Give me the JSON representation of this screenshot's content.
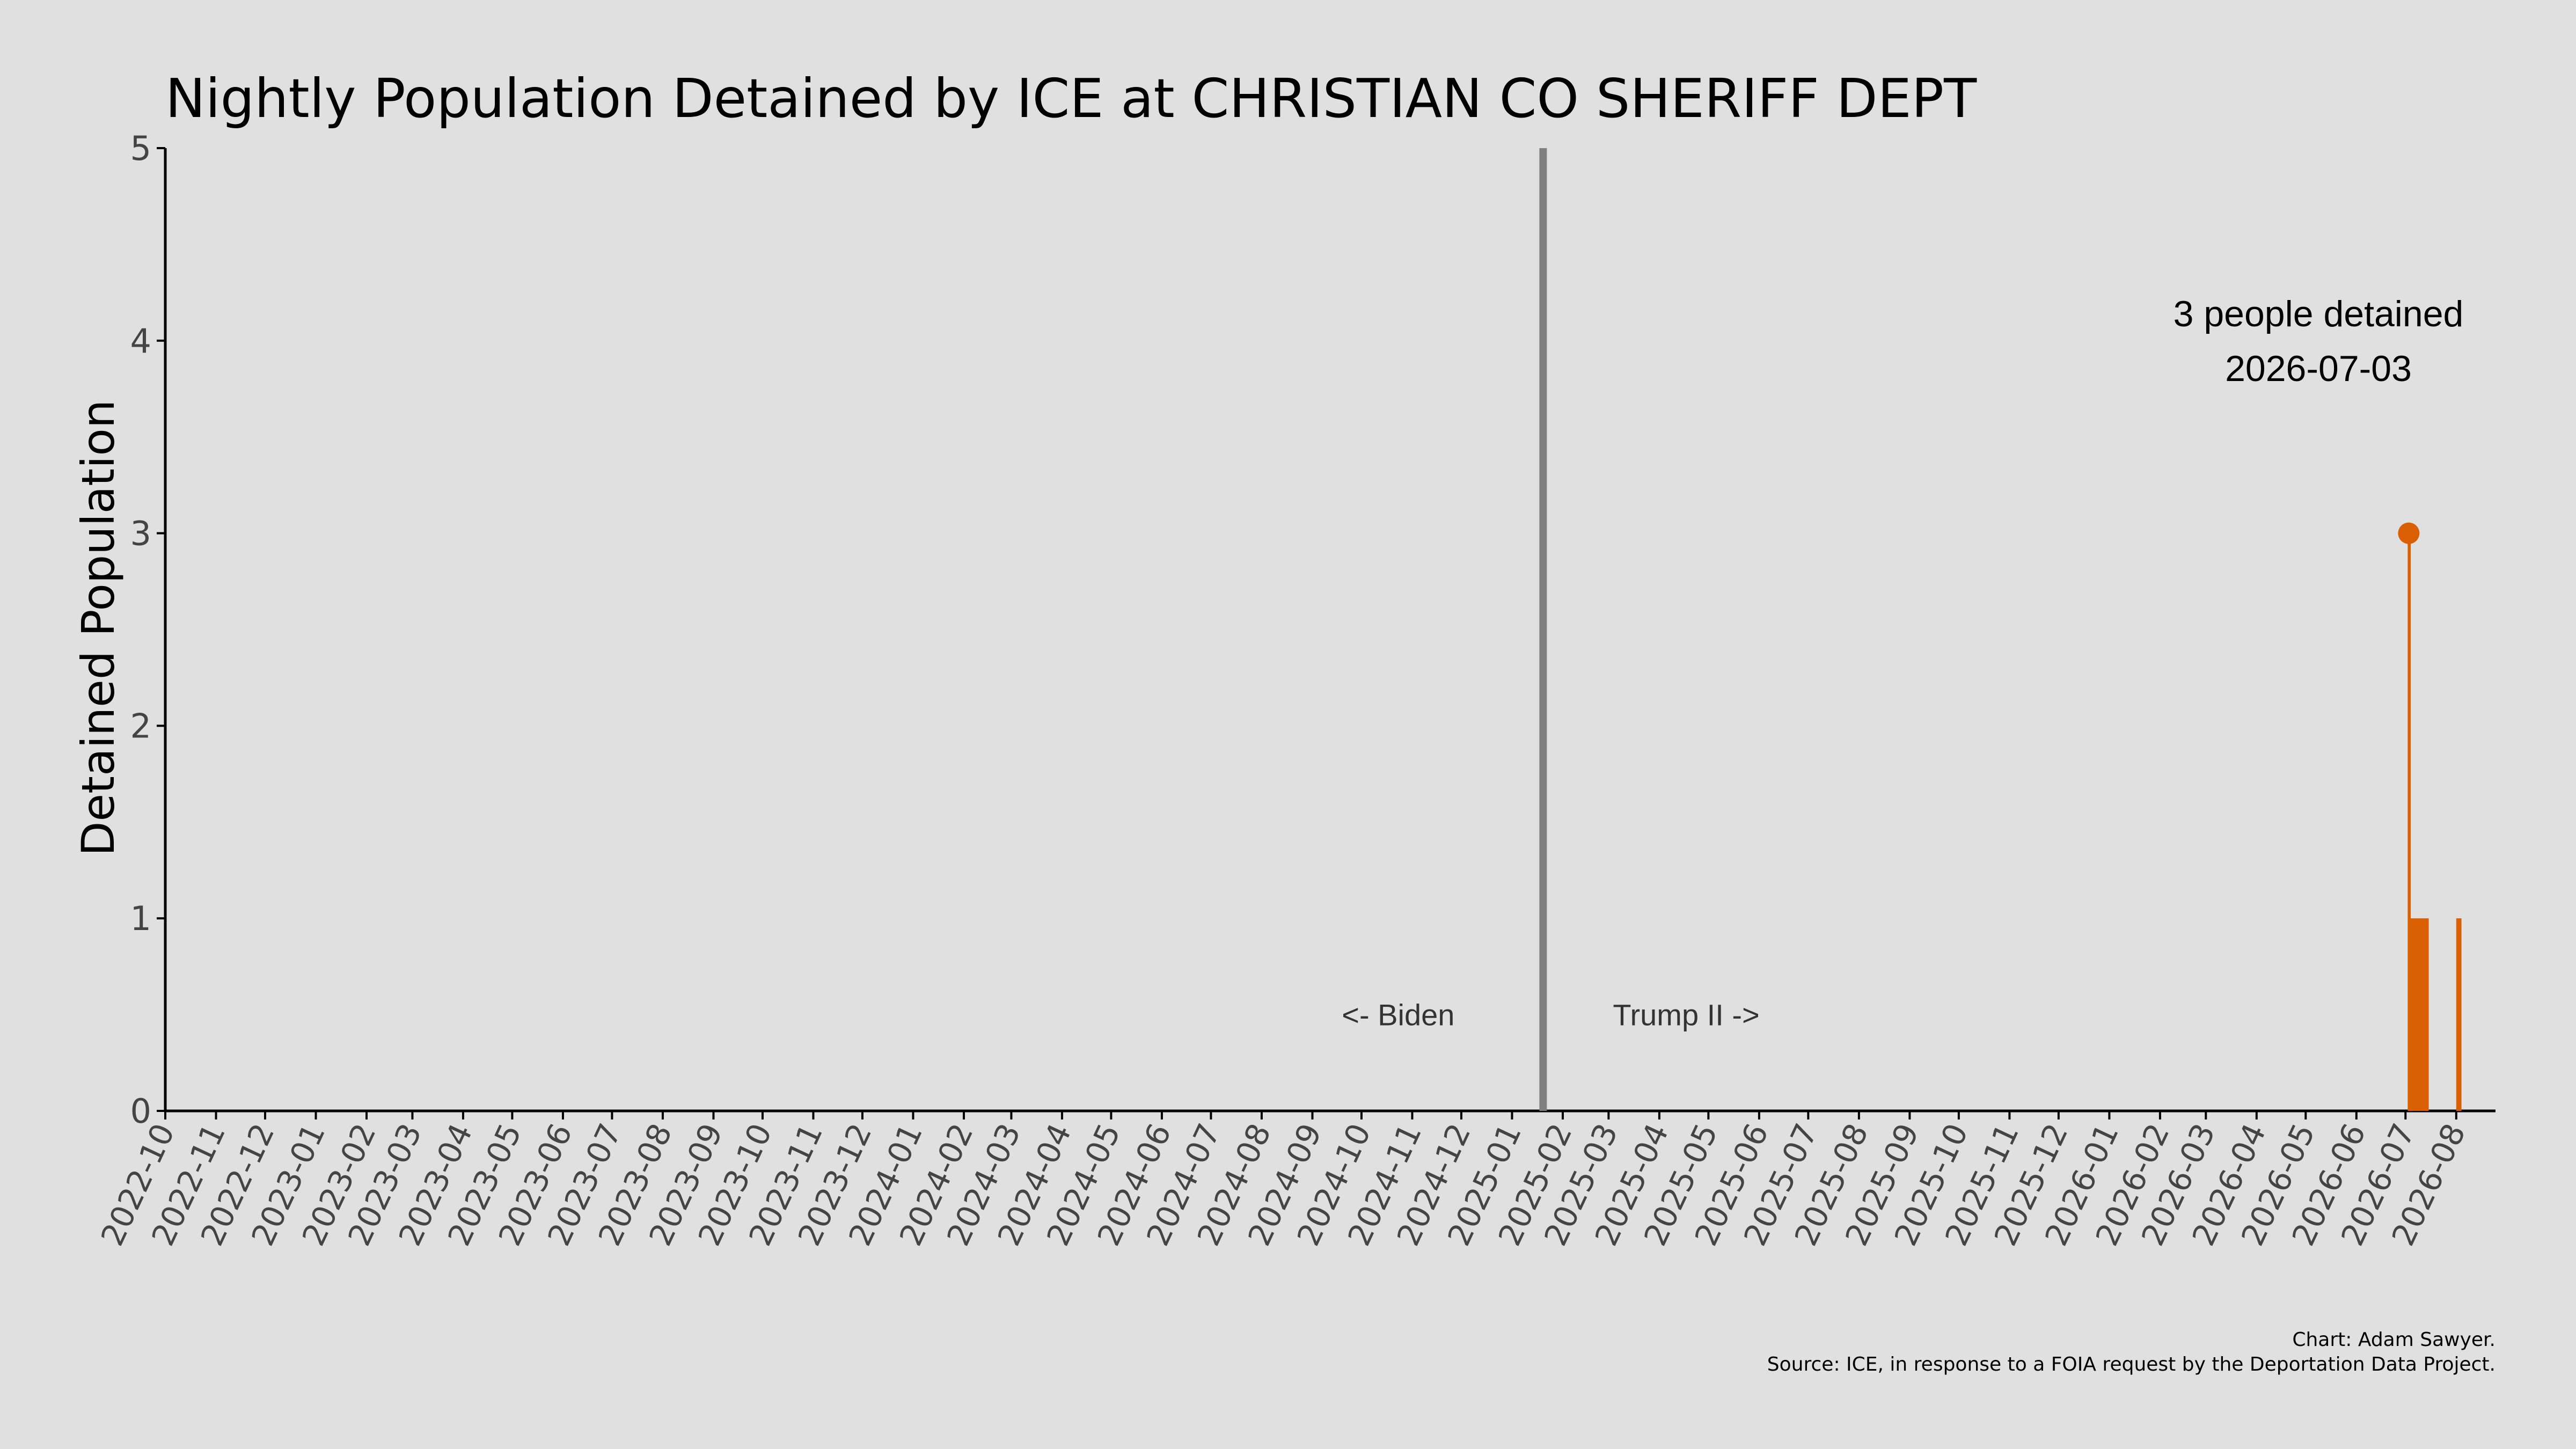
{
  "chart_data": {
    "type": "bar",
    "title": "Nightly Population Detained by ICE at CHRISTIAN CO SHERIFF DEPT",
    "ylabel": "Detained Population",
    "xlabel": "",
    "ylim": [
      0,
      5
    ],
    "yticks": [
      0,
      1,
      2,
      3,
      4,
      5
    ],
    "xlim": [
      "2022-10-01",
      "2026-08-25"
    ],
    "x_tick_labels": [
      "2022-10",
      "2022-11",
      "2022-12",
      "2023-01",
      "2023-02",
      "2023-03",
      "2023-04",
      "2023-05",
      "2023-06",
      "2023-07",
      "2023-08",
      "2023-09",
      "2023-10",
      "2023-11",
      "2023-12",
      "2024-01",
      "2024-02",
      "2024-03",
      "2024-04",
      "2024-05",
      "2024-06",
      "2024-07",
      "2024-08",
      "2024-09",
      "2024-10",
      "2024-11",
      "2024-12",
      "2025-01",
      "2025-02",
      "2025-03",
      "2025-04",
      "2025-05",
      "2025-06",
      "2025-07",
      "2025-08",
      "2025-09",
      "2025-10",
      "2025-11",
      "2025-12",
      "2026-01",
      "2026-02",
      "2026-03",
      "2026-04",
      "2026-05",
      "2026-06",
      "2026-07",
      "2026-08"
    ],
    "grid": false,
    "bar_color": "#d95f02",
    "series": [
      {
        "dates": [
          "2026-07-03",
          "2026-07-04",
          "2026-07-05",
          "2026-07-06",
          "2026-07-07",
          "2026-07-08",
          "2026-07-09",
          "2026-07-10",
          "2026-07-11",
          "2026-07-12",
          "2026-07-13",
          "2026-07-14",
          "2026-08-01",
          "2026-08-02",
          "2026-08-03"
        ],
        "values": [
          3,
          1,
          1,
          1,
          1,
          1,
          1,
          1,
          1,
          1,
          1,
          1,
          1,
          1,
          1
        ]
      }
    ],
    "divider": {
      "date": "2025-01-20",
      "color": "#808080",
      "left_label": "<- Biden",
      "right_label": "Trump II ->"
    },
    "peak_annotation": {
      "date": "2026-07-03",
      "value": 3,
      "line1": "3 people detained",
      "line2": "2026-07-03"
    },
    "credit": "Chart: Adam Sawyer.",
    "source": "Source: ICE, in response to a FOIA request by the Deportation Data Project."
  }
}
